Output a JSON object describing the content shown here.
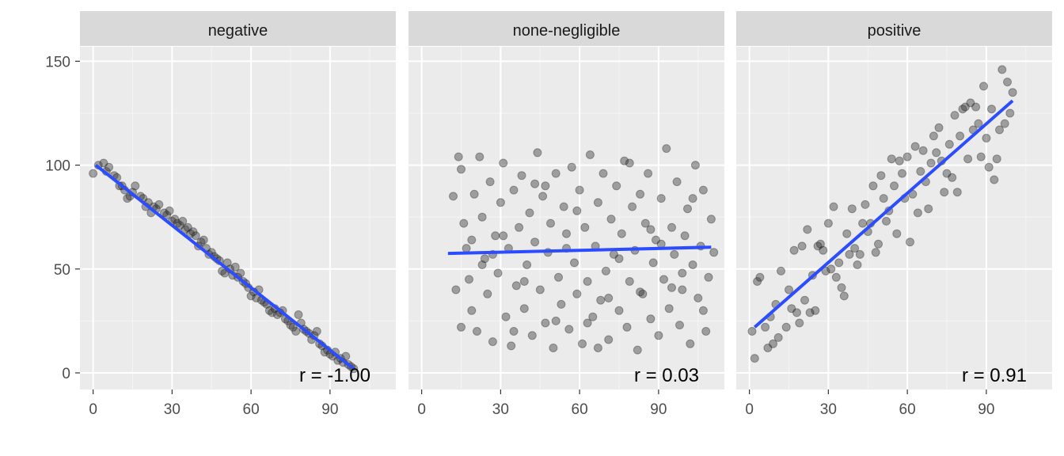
{
  "chart_data": {
    "type": "scatter",
    "layout": "facet-grid",
    "shared_y_axis": true,
    "grid": true,
    "xlabel": "",
    "ylabel": "",
    "ylim": [
      -8,
      157
    ],
    "yticks": [
      0,
      50,
      100,
      150
    ],
    "colors": {
      "points": "#333333",
      "trend_line": "#2b4cff",
      "strip": "#d9d9d9",
      "panel": "#ebebeb"
    },
    "panels": [
      {
        "label": "negative",
        "xlim": [
          -5,
          115
        ],
        "xticks": [
          0,
          30,
          60,
          90
        ],
        "correlation_label": "r =  -1.00",
        "trend_line": [
          [
            1,
            100
          ],
          [
            99,
            2
          ]
        ],
        "points": [
          [
            0,
            96
          ],
          [
            2,
            100
          ],
          [
            4,
            101
          ],
          [
            5,
            97
          ],
          [
            6,
            99
          ],
          [
            8,
            95
          ],
          [
            9,
            94
          ],
          [
            10,
            90
          ],
          [
            11,
            90
          ],
          [
            12,
            88
          ],
          [
            13,
            84
          ],
          [
            14,
            85
          ],
          [
            15,
            87
          ],
          [
            16,
            90
          ],
          [
            18,
            85
          ],
          [
            19,
            84
          ],
          [
            20,
            80
          ],
          [
            21,
            82
          ],
          [
            22,
            77
          ],
          [
            23,
            80
          ],
          [
            24,
            79
          ],
          [
            25,
            81
          ],
          [
            27,
            77
          ],
          [
            28,
            76
          ],
          [
            29,
            78
          ],
          [
            30,
            73
          ],
          [
            31,
            74
          ],
          [
            32,
            72
          ],
          [
            33,
            71
          ],
          [
            34,
            73
          ],
          [
            35,
            69
          ],
          [
            36,
            70
          ],
          [
            37,
            67
          ],
          [
            38,
            68
          ],
          [
            39,
            66
          ],
          [
            40,
            61
          ],
          [
            41,
            63
          ],
          [
            42,
            64
          ],
          [
            43,
            60
          ],
          [
            44,
            57
          ],
          [
            45,
            58
          ],
          [
            46,
            56
          ],
          [
            47,
            55
          ],
          [
            48,
            54
          ],
          [
            49,
            49
          ],
          [
            50,
            48
          ],
          [
            51,
            53
          ],
          [
            52,
            50
          ],
          [
            53,
            47
          ],
          [
            54,
            51
          ],
          [
            55,
            46
          ],
          [
            56,
            48
          ],
          [
            57,
            44
          ],
          [
            58,
            43
          ],
          [
            59,
            41
          ],
          [
            60,
            37
          ],
          [
            61,
            39
          ],
          [
            62,
            36
          ],
          [
            63,
            40
          ],
          [
            64,
            35
          ],
          [
            65,
            34
          ],
          [
            66,
            33
          ],
          [
            67,
            30
          ],
          [
            68,
            29
          ],
          [
            69,
            31
          ],
          [
            70,
            28
          ],
          [
            71,
            29
          ],
          [
            72,
            30
          ],
          [
            73,
            26
          ],
          [
            74,
            25
          ],
          [
            75,
            23
          ],
          [
            76,
            22
          ],
          [
            77,
            20
          ],
          [
            78,
            28
          ],
          [
            79,
            24
          ],
          [
            80,
            21
          ],
          [
            81,
            20
          ],
          [
            82,
            19
          ],
          [
            83,
            16
          ],
          [
            84,
            18
          ],
          [
            85,
            20
          ],
          [
            86,
            14
          ],
          [
            87,
            13
          ],
          [
            88,
            10
          ],
          [
            89,
            11
          ],
          [
            90,
            9
          ],
          [
            91,
            8
          ],
          [
            92,
            10
          ],
          [
            93,
            6
          ],
          [
            94,
            7
          ],
          [
            95,
            5
          ],
          [
            96,
            8
          ],
          [
            97,
            4
          ],
          [
            98,
            3
          ],
          [
            99,
            2
          ]
        ]
      },
      {
        "label": "none-negligible",
        "xlim": [
          -5,
          115
        ],
        "xticks": [
          0,
          30,
          60,
          90
        ],
        "correlation_label": "r =  0.03",
        "trend_line": [
          [
            10,
            57.5
          ],
          [
            110,
            60.5
          ]
        ],
        "points": [
          [
            12,
            85
          ],
          [
            14,
            104
          ],
          [
            15,
            98
          ],
          [
            16,
            72
          ],
          [
            17,
            60
          ],
          [
            18,
            45
          ],
          [
            19,
            30
          ],
          [
            20,
            86
          ],
          [
            21,
            20
          ],
          [
            22,
            104
          ],
          [
            23,
            75
          ],
          [
            24,
            55
          ],
          [
            25,
            38
          ],
          [
            26,
            92
          ],
          [
            27,
            15
          ],
          [
            28,
            66
          ],
          [
            29,
            48
          ],
          [
            30,
            82
          ],
          [
            31,
            101
          ],
          [
            32,
            27
          ],
          [
            33,
            60
          ],
          [
            34,
            13
          ],
          [
            35,
            88
          ],
          [
            36,
            42
          ],
          [
            37,
            70
          ],
          [
            38,
            95
          ],
          [
            39,
            31
          ],
          [
            40,
            52
          ],
          [
            41,
            77
          ],
          [
            42,
            18
          ],
          [
            43,
            63
          ],
          [
            44,
            106
          ],
          [
            45,
            40
          ],
          [
            46,
            85
          ],
          [
            47,
            24
          ],
          [
            48,
            58
          ],
          [
            49,
            72
          ],
          [
            50,
            12
          ],
          [
            51,
            96
          ],
          [
            52,
            46
          ],
          [
            53,
            33
          ],
          [
            54,
            80
          ],
          [
            55,
            67
          ],
          [
            56,
            21
          ],
          [
            57,
            99
          ],
          [
            58,
            53
          ],
          [
            59,
            38
          ],
          [
            60,
            88
          ],
          [
            61,
            14
          ],
          [
            62,
            70
          ],
          [
            63,
            44
          ],
          [
            64,
            105
          ],
          [
            65,
            27
          ],
          [
            66,
            61
          ],
          [
            67,
            82
          ],
          [
            68,
            35
          ],
          [
            69,
            96
          ],
          [
            70,
            49
          ],
          [
            71,
            16
          ],
          [
            72,
            74
          ],
          [
            73,
            57
          ],
          [
            74,
            90
          ],
          [
            75,
            30
          ],
          [
            76,
            67
          ],
          [
            77,
            102
          ],
          [
            78,
            22
          ],
          [
            79,
            44
          ],
          [
            80,
            80
          ],
          [
            81,
            59
          ],
          [
            82,
            11
          ],
          [
            83,
            86
          ],
          [
            84,
            38
          ],
          [
            85,
            72
          ],
          [
            86,
            96
          ],
          [
            87,
            26
          ],
          [
            88,
            53
          ],
          [
            89,
            64
          ],
          [
            90,
            18
          ],
          [
            91,
            84
          ],
          [
            92,
            45
          ],
          [
            93,
            108
          ],
          [
            94,
            31
          ],
          [
            95,
            70
          ],
          [
            96,
            57
          ],
          [
            97,
            92
          ],
          [
            98,
            23
          ],
          [
            99,
            40
          ],
          [
            100,
            66
          ],
          [
            101,
            79
          ],
          [
            102,
            14
          ],
          [
            103,
            52
          ],
          [
            104,
            100
          ],
          [
            105,
            36
          ],
          [
            106,
            61
          ],
          [
            107,
            88
          ],
          [
            108,
            20
          ],
          [
            109,
            46
          ],
          [
            110,
            74
          ],
          [
            13,
            40
          ],
          [
            19,
            64
          ],
          [
            27,
            57
          ],
          [
            35,
            20
          ],
          [
            43,
            91
          ],
          [
            51,
            25
          ],
          [
            59,
            78
          ],
          [
            67,
            12
          ],
          [
            75,
            55
          ],
          [
            83,
            39
          ],
          [
            91,
            62
          ],
          [
            99,
            48
          ],
          [
            107,
            30
          ],
          [
            15,
            22
          ],
          [
            23,
            52
          ],
          [
            31,
            66
          ],
          [
            39,
            44
          ],
          [
            47,
            90
          ],
          [
            55,
            60
          ],
          [
            63,
            24
          ],
          [
            71,
            36
          ],
          [
            79,
            101
          ],
          [
            87,
            69
          ],
          [
            95,
            41
          ],
          [
            103,
            84
          ],
          [
            111,
            58
          ]
        ]
      },
      {
        "label": "positive",
        "xlim": [
          -5,
          115
        ],
        "xticks": [
          0,
          30,
          60,
          90
        ],
        "correlation_label": "r =  0.91",
        "trend_line": [
          [
            2,
            22
          ],
          [
            100,
            131
          ]
        ],
        "points": [
          [
            1,
            20
          ],
          [
            2,
            7
          ],
          [
            3,
            44
          ],
          [
            4,
            46
          ],
          [
            6,
            22
          ],
          [
            7,
            12
          ],
          [
            8,
            27
          ],
          [
            9,
            14
          ],
          [
            10,
            33
          ],
          [
            11,
            17
          ],
          [
            12,
            49
          ],
          [
            14,
            22
          ],
          [
            15,
            40
          ],
          [
            16,
            31
          ],
          [
            17,
            59
          ],
          [
            18,
            29
          ],
          [
            19,
            24
          ],
          [
            20,
            61
          ],
          [
            21,
            35
          ],
          [
            22,
            69
          ],
          [
            23,
            29
          ],
          [
            24,
            47
          ],
          [
            25,
            30
          ],
          [
            26,
            61
          ],
          [
            27,
            62
          ],
          [
            28,
            59
          ],
          [
            29,
            49
          ],
          [
            30,
            72
          ],
          [
            31,
            50
          ],
          [
            32,
            80
          ],
          [
            33,
            46
          ],
          [
            34,
            53
          ],
          [
            35,
            41
          ],
          [
            36,
            37
          ],
          [
            37,
            67
          ],
          [
            38,
            57
          ],
          [
            39,
            79
          ],
          [
            40,
            60
          ],
          [
            41,
            52
          ],
          [
            42,
            57
          ],
          [
            43,
            72
          ],
          [
            44,
            81
          ],
          [
            45,
            68
          ],
          [
            46,
            72
          ],
          [
            47,
            90
          ],
          [
            48,
            58
          ],
          [
            49,
            62
          ],
          [
            50,
            95
          ],
          [
            51,
            84
          ],
          [
            52,
            73
          ],
          [
            53,
            78
          ],
          [
            54,
            103
          ],
          [
            55,
            90
          ],
          [
            56,
            67
          ],
          [
            57,
            102
          ],
          [
            58,
            96
          ],
          [
            59,
            84
          ],
          [
            60,
            104
          ],
          [
            61,
            63
          ],
          [
            62,
            86
          ],
          [
            63,
            109
          ],
          [
            64,
            77
          ],
          [
            65,
            97
          ],
          [
            66,
            107
          ],
          [
            67,
            92
          ],
          [
            68,
            79
          ],
          [
            69,
            101
          ],
          [
            70,
            114
          ],
          [
            71,
            106
          ],
          [
            72,
            118
          ],
          [
            73,
            102
          ],
          [
            74,
            87
          ],
          [
            75,
            96
          ],
          [
            76,
            110
          ],
          [
            77,
            94
          ],
          [
            78,
            124
          ],
          [
            79,
            87
          ],
          [
            80,
            114
          ],
          [
            81,
            127
          ],
          [
            82,
            128
          ],
          [
            83,
            103
          ],
          [
            84,
            130
          ],
          [
            85,
            117
          ],
          [
            86,
            128
          ],
          [
            87,
            120
          ],
          [
            88,
            104
          ],
          [
            89,
            138
          ],
          [
            90,
            113
          ],
          [
            91,
            99
          ],
          [
            92,
            127
          ],
          [
            93,
            93
          ],
          [
            94,
            103
          ],
          [
            95,
            117
          ],
          [
            96,
            146
          ],
          [
            97,
            120
          ],
          [
            98,
            140
          ],
          [
            99,
            125
          ],
          [
            100,
            135
          ]
        ]
      }
    ]
  }
}
